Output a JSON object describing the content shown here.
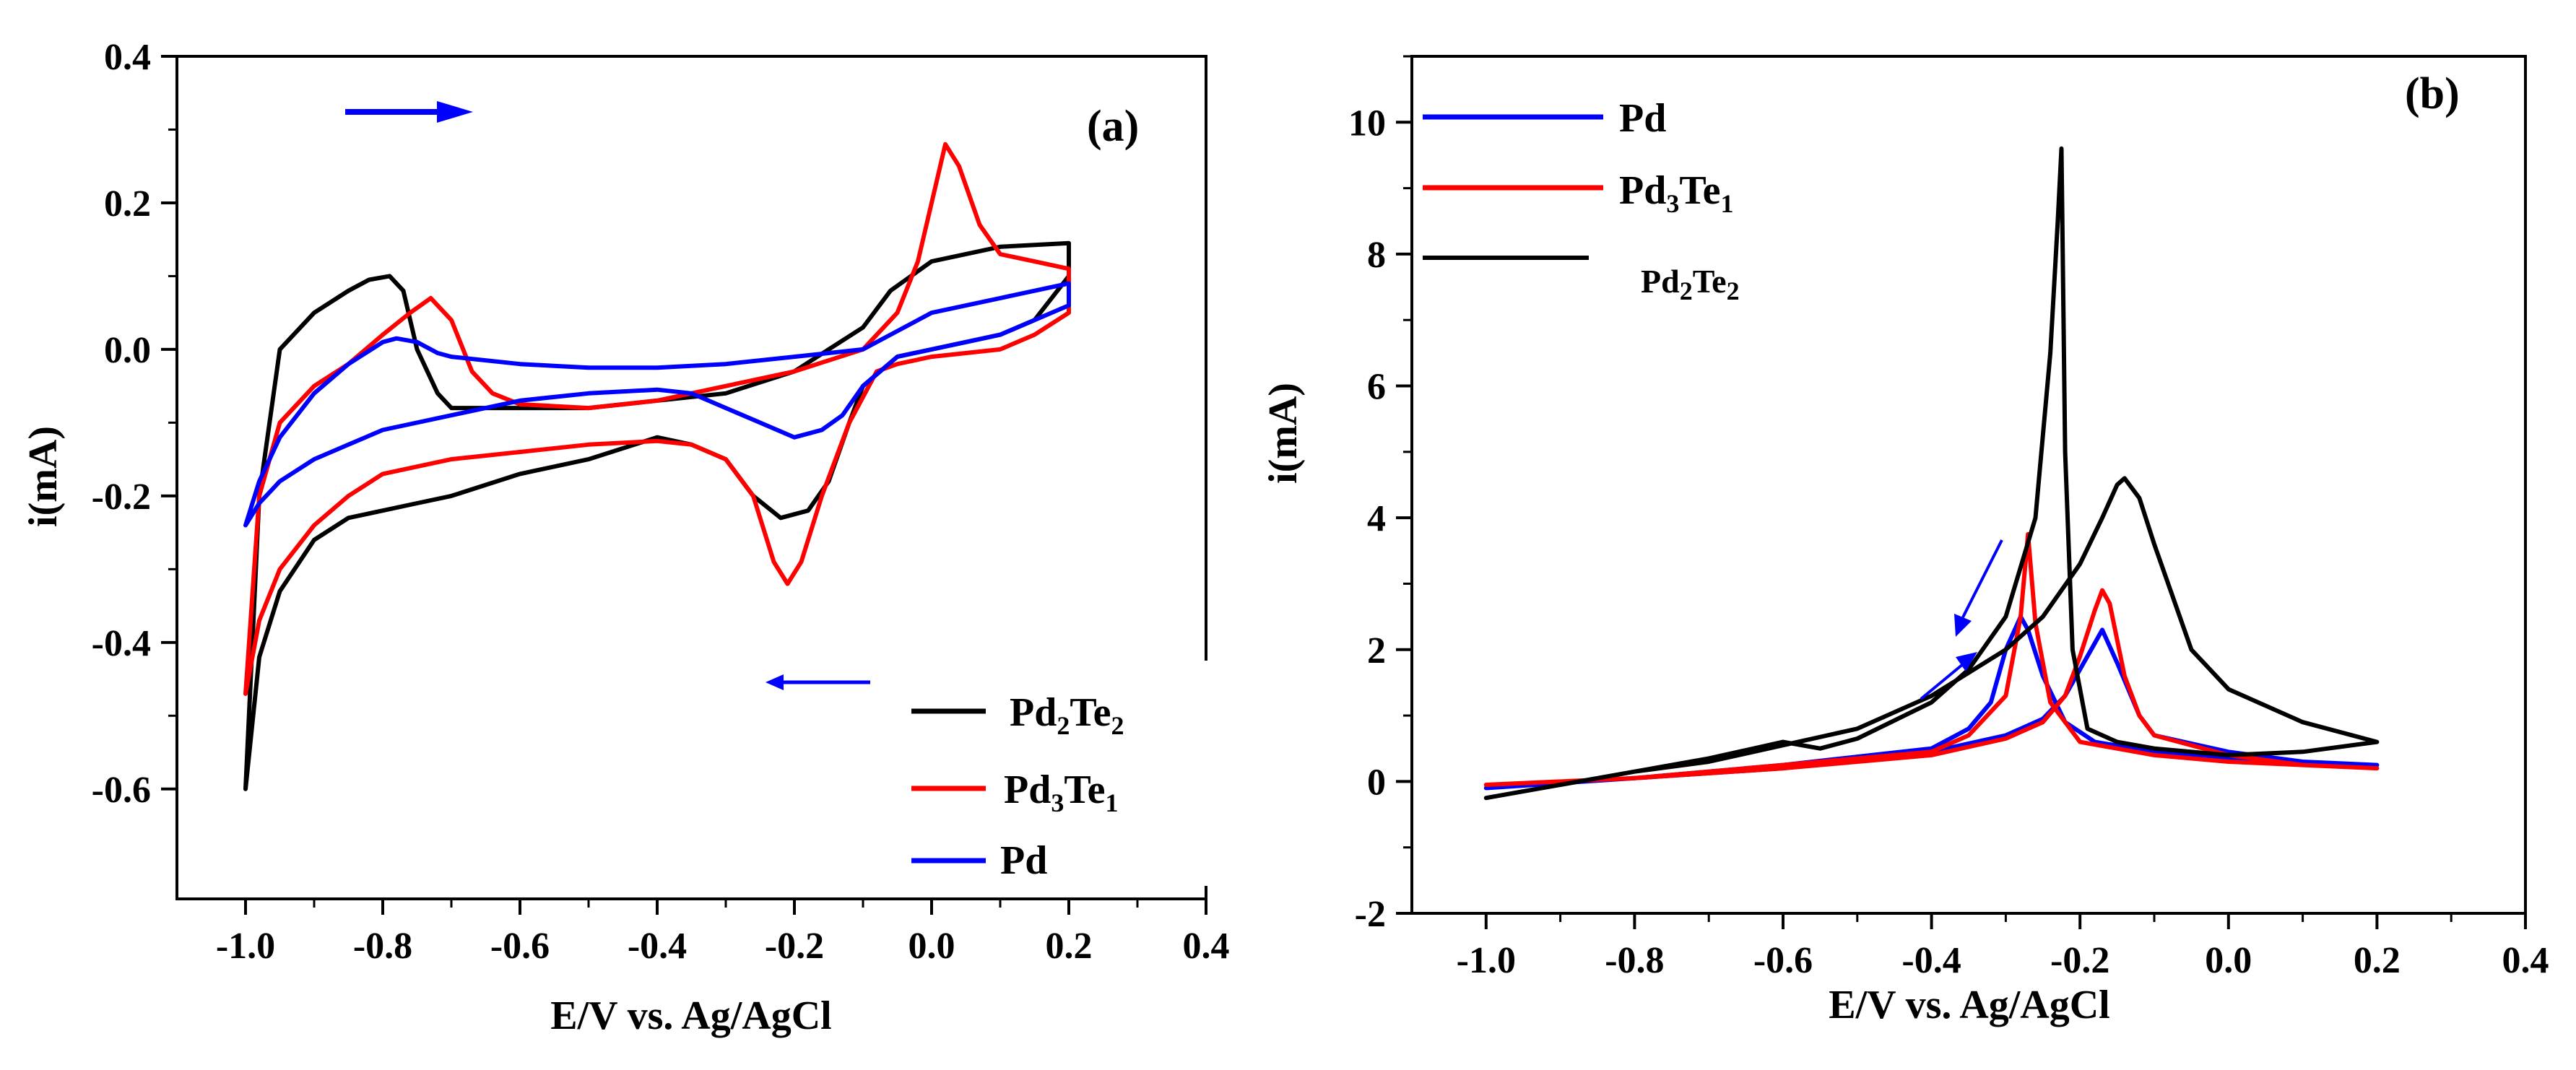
{
  "chart_data": [
    {
      "type": "line",
      "panel_label": "(a)",
      "xlabel": "E/V vs. Ag/AgCl",
      "ylabel": "i(mA)",
      "xlim": [
        -1.1,
        0.4
      ],
      "ylim": [
        -0.75,
        0.4
      ],
      "xticks": [
        "-1.0",
        "-0.8",
        "-0.6",
        "-0.4",
        "-0.2",
        "0.0",
        "0.2",
        "0.4"
      ],
      "yticks": [
        "-0.6",
        "-0.4",
        "-0.2",
        "0.0",
        "0.2",
        "0.4"
      ],
      "xtick_values": [
        -1.0,
        -0.8,
        -0.6,
        -0.4,
        -0.2,
        0.0,
        0.2,
        0.4
      ],
      "ytick_values": [
        -0.6,
        -0.4,
        -0.2,
        0.0,
        0.2,
        0.4
      ],
      "legend_position": "bottom-right",
      "annotations": [
        "forward scan arrow (right)",
        "reverse scan arrow (left)"
      ],
      "series": [
        {
          "name": "Pd2Te2",
          "label_base": "Pd",
          "label_sub1": "2",
          "label_mid": "Te",
          "label_sub2": "2",
          "color": "#000000",
          "x": [
            -1.0,
            -0.98,
            -0.95,
            -0.9,
            -0.85,
            -0.82,
            -0.79,
            -0.77,
            -0.75,
            -0.72,
            -0.7,
            -0.6,
            -0.5,
            -0.4,
            -0.3,
            -0.2,
            -0.1,
            -0.06,
            0.0,
            0.1,
            0.2,
            0.2,
            0.15,
            0.1,
            0.05,
            0.0,
            -0.05,
            -0.1,
            -0.12,
            -0.15,
            -0.18,
            -0.22,
            -0.26,
            -0.3,
            -0.35,
            -0.4,
            -0.5,
            -0.6,
            -0.7,
            -0.75,
            -0.8,
            -0.85,
            -0.9,
            -0.95,
            -0.98,
            -1.0
          ],
          "values": [
            -0.6,
            -0.2,
            0.0,
            0.05,
            0.08,
            0.095,
            0.1,
            0.08,
            0.0,
            -0.06,
            -0.08,
            -0.08,
            -0.08,
            -0.07,
            -0.06,
            -0.03,
            0.03,
            0.08,
            0.12,
            0.14,
            0.145,
            0.1,
            0.04,
            0.02,
            0.01,
            0.0,
            -0.01,
            -0.05,
            -0.1,
            -0.18,
            -0.22,
            -0.23,
            -0.2,
            -0.15,
            -0.13,
            -0.12,
            -0.15,
            -0.17,
            -0.2,
            -0.21,
            -0.22,
            -0.23,
            -0.26,
            -0.33,
            -0.42,
            -0.6
          ]
        },
        {
          "name": "Pd3Te1",
          "label_base": "Pd",
          "label_sub1": "3",
          "label_mid": "Te",
          "label_sub2": "1",
          "color": "#ff0000",
          "x": [
            -1.0,
            -0.98,
            -0.95,
            -0.9,
            -0.85,
            -0.8,
            -0.76,
            -0.73,
            -0.7,
            -0.67,
            -0.64,
            -0.6,
            -0.5,
            -0.4,
            -0.3,
            -0.2,
            -0.1,
            -0.05,
            -0.02,
            0.0,
            0.02,
            0.04,
            0.07,
            0.1,
            0.15,
            0.2,
            0.2,
            0.15,
            0.1,
            0.05,
            0.0,
            -0.05,
            -0.08,
            -0.12,
            -0.16,
            -0.19,
            -0.21,
            -0.23,
            -0.26,
            -0.3,
            -0.35,
            -0.4,
            -0.5,
            -0.6,
            -0.7,
            -0.8,
            -0.85,
            -0.9,
            -0.95,
            -0.98,
            -1.0
          ],
          "values": [
            -0.47,
            -0.2,
            -0.1,
            -0.05,
            -0.02,
            0.02,
            0.05,
            0.07,
            0.04,
            -0.03,
            -0.06,
            -0.075,
            -0.08,
            -0.07,
            -0.05,
            -0.03,
            0.0,
            0.05,
            0.12,
            0.2,
            0.28,
            0.25,
            0.17,
            0.13,
            0.12,
            0.11,
            0.05,
            0.02,
            0.0,
            -0.005,
            -0.01,
            -0.02,
            -0.03,
            -0.1,
            -0.2,
            -0.29,
            -0.32,
            -0.29,
            -0.2,
            -0.15,
            -0.13,
            -0.125,
            -0.13,
            -0.14,
            -0.15,
            -0.17,
            -0.2,
            -0.24,
            -0.3,
            -0.37,
            -0.47
          ]
        },
        {
          "name": "Pd",
          "label_base": "Pd",
          "label_sub1": "",
          "label_mid": "",
          "label_sub2": "",
          "color": "#0000ff",
          "x": [
            -1.0,
            -0.98,
            -0.95,
            -0.9,
            -0.85,
            -0.8,
            -0.78,
            -0.75,
            -0.72,
            -0.7,
            -0.6,
            -0.5,
            -0.4,
            -0.3,
            -0.2,
            -0.1,
            0.0,
            0.1,
            0.2,
            0.2,
            0.1,
            0.0,
            -0.05,
            -0.1,
            -0.13,
            -0.16,
            -0.2,
            -0.25,
            -0.3,
            -0.35,
            -0.4,
            -0.5,
            -0.6,
            -0.7,
            -0.8,
            -0.85,
            -0.9,
            -0.95,
            -0.98,
            -1.0
          ],
          "values": [
            -0.24,
            -0.18,
            -0.12,
            -0.06,
            -0.02,
            0.01,
            0.015,
            0.01,
            -0.005,
            -0.01,
            -0.02,
            -0.025,
            -0.025,
            -0.02,
            -0.01,
            0.0,
            0.05,
            0.07,
            0.09,
            0.06,
            0.02,
            0.0,
            -0.01,
            -0.05,
            -0.09,
            -0.11,
            -0.12,
            -0.1,
            -0.08,
            -0.06,
            -0.055,
            -0.06,
            -0.07,
            -0.09,
            -0.11,
            -0.13,
            -0.15,
            -0.18,
            -0.21,
            -0.24
          ]
        }
      ]
    },
    {
      "type": "line",
      "panel_label": "(b)",
      "xlabel": "E/V vs. Ag/AgCl",
      "ylabel": "i(mA)",
      "xlim": [
        -1.1,
        0.4
      ],
      "ylim": [
        -2,
        11
      ],
      "xticks": [
        "-1.0",
        "-0.8",
        "-0.6",
        "-0.4",
        "-0.2",
        "0.0",
        "0.2",
        "0.4"
      ],
      "yticks": [
        "-2",
        "0",
        "2",
        "4",
        "6",
        "8",
        "10"
      ],
      "xtick_values": [
        -1.0,
        -0.8,
        -0.6,
        -0.4,
        -0.2,
        0.0,
        0.2,
        0.4
      ],
      "ytick_values": [
        -2,
        0,
        2,
        4,
        6,
        8,
        10
      ],
      "legend_position": "top-left",
      "annotations": [
        "scan direction arrow (down-left)",
        "scan direction arrow (up-right)"
      ],
      "series": [
        {
          "name": "Pd",
          "label_base": "Pd",
          "label_sub1": "",
          "label_mid": "",
          "label_sub2": "",
          "color": "#0000ff",
          "x": [
            -1.0,
            -0.8,
            -0.6,
            -0.4,
            -0.3,
            -0.25,
            -0.22,
            -0.2,
            -0.18,
            -0.17,
            -0.15,
            -0.12,
            -0.1,
            0.0,
            0.1,
            0.2,
            0.2,
            0.1,
            0.0,
            -0.1,
            -0.18,
            -0.22,
            -0.25,
            -0.27,
            -0.28,
            -0.3,
            -0.32,
            -0.35,
            -0.4,
            -0.6,
            -0.8,
            -1.0
          ],
          "values": [
            -0.1,
            0.05,
            0.2,
            0.45,
            0.7,
            0.95,
            1.3,
            1.7,
            2.1,
            2.3,
            1.8,
            1.0,
            0.7,
            0.45,
            0.3,
            0.25,
            0.25,
            0.3,
            0.35,
            0.45,
            0.6,
            0.9,
            1.6,
            2.3,
            2.5,
            2.0,
            1.2,
            0.8,
            0.5,
            0.25,
            0.05,
            -0.1
          ]
        },
        {
          "name": "Pd3Te1",
          "label_base": "Pd",
          "label_sub1": "3",
          "label_mid": "Te",
          "label_sub2": "1",
          "color": "#ff0000",
          "x": [
            -1.0,
            -0.8,
            -0.6,
            -0.4,
            -0.3,
            -0.25,
            -0.22,
            -0.2,
            -0.18,
            -0.17,
            -0.16,
            -0.14,
            -0.12,
            -0.1,
            0.0,
            0.1,
            0.2,
            0.2,
            0.1,
            0.0,
            -0.1,
            -0.2,
            -0.24,
            -0.26,
            -0.27,
            -0.28,
            -0.3,
            -0.35,
            -0.4,
            -0.6,
            -0.8,
            -1.0
          ],
          "values": [
            -0.05,
            0.05,
            0.2,
            0.4,
            0.65,
            0.9,
            1.3,
            1.9,
            2.6,
            2.9,
            2.7,
            1.6,
            1.0,
            0.7,
            0.4,
            0.25,
            0.2,
            0.2,
            0.25,
            0.3,
            0.4,
            0.6,
            1.2,
            2.4,
            3.75,
            2.5,
            1.3,
            0.7,
            0.45,
            0.25,
            0.05,
            -0.05
          ]
        },
        {
          "name": "Pd2Te2",
          "label_base": "Pd",
          "label_sub1": "2",
          "label_mid": "Te",
          "label_sub2": "2",
          "color": "#000000",
          "x": [
            -1.0,
            -0.8,
            -0.7,
            -0.6,
            -0.5,
            -0.4,
            -0.3,
            -0.25,
            -0.2,
            -0.17,
            -0.15,
            -0.14,
            -0.12,
            -0.1,
            -0.05,
            0.0,
            0.1,
            0.2,
            0.2,
            0.1,
            0.0,
            -0.1,
            -0.15,
            -0.19,
            -0.21,
            -0.22,
            -0.225,
            -0.23,
            -0.24,
            -0.26,
            -0.3,
            -0.35,
            -0.4,
            -0.5,
            -0.55,
            -0.6,
            -0.7,
            -0.8,
            -0.9,
            -1.0
          ],
          "values": [
            -0.25,
            0.15,
            0.3,
            0.55,
            0.8,
            1.3,
            2.0,
            2.5,
            3.3,
            4.0,
            4.5,
            4.6,
            4.3,
            3.6,
            2.0,
            1.4,
            0.9,
            0.6,
            0.6,
            0.45,
            0.4,
            0.5,
            0.6,
            0.8,
            2.0,
            5.0,
            9.6,
            8.5,
            6.5,
            4.0,
            2.5,
            1.7,
            1.2,
            0.65,
            0.5,
            0.6,
            0.35,
            0.15,
            -0.05,
            -0.25
          ]
        }
      ]
    }
  ]
}
